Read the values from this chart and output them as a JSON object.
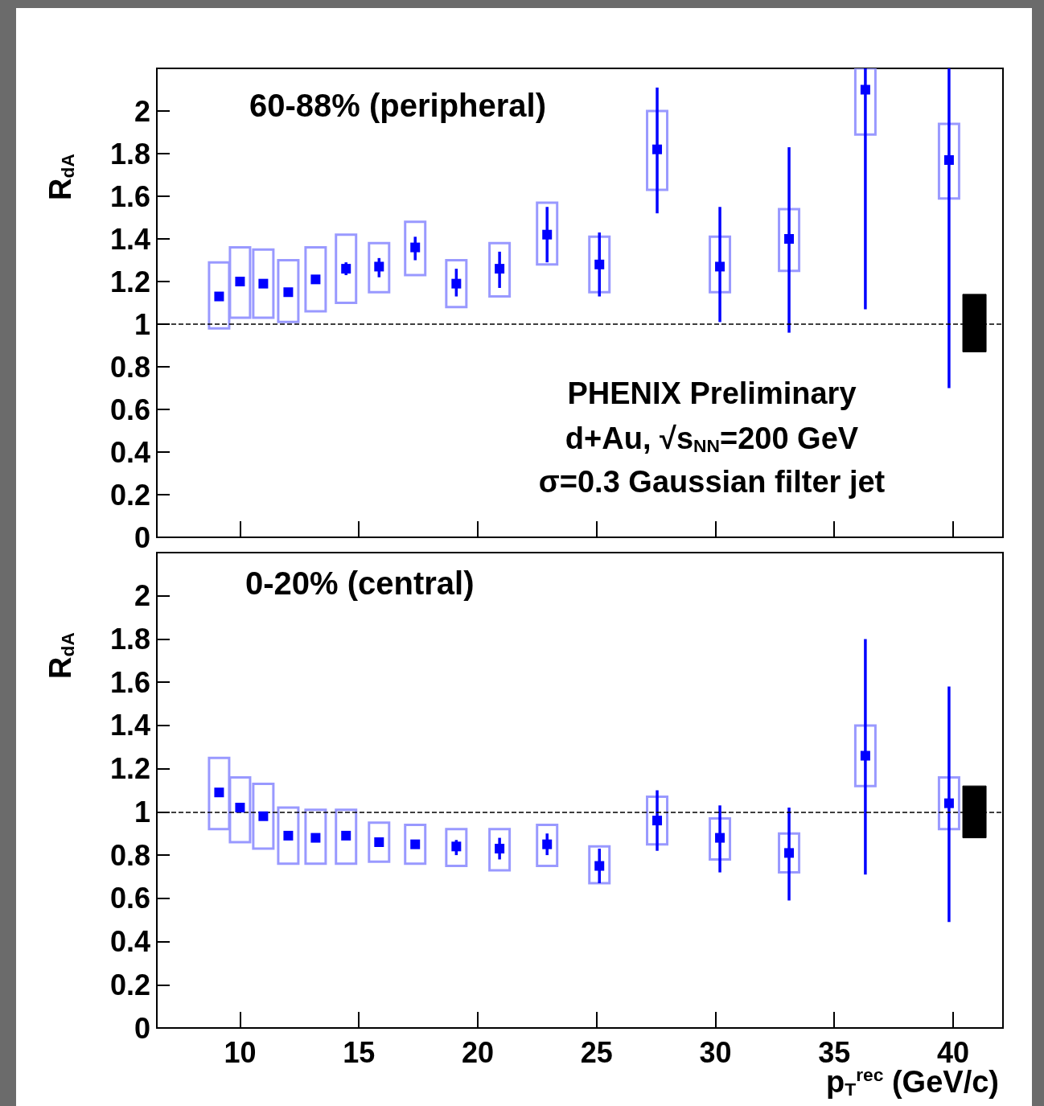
{
  "chart_data": [
    {
      "type": "scatter",
      "title": "60-88% (peripheral)",
      "ylabel": "R$_{dA}$",
      "annotations": [
        "PHENIX Preliminary",
        "d+Au, √s$_{NN}$=200 GeV",
        "σ=0.3 Gaussian filter jet"
      ],
      "x": [
        9.12,
        10.0,
        10.98,
        12.03,
        13.18,
        14.46,
        15.85,
        17.37,
        19.1,
        20.92,
        22.92,
        25.12,
        27.55,
        30.19,
        33.1,
        36.31,
        39.83
      ],
      "xlim": [
        6.5,
        42.1
      ],
      "xticks": [
        10,
        15,
        20,
        25,
        30,
        35,
        40
      ],
      "ylim": [
        0,
        2.2
      ],
      "yticks": [
        0,
        0.2,
        0.4,
        0.6,
        0.8,
        1,
        1.2,
        1.4,
        1.6,
        1.8,
        2
      ],
      "tick_labels": "y",
      "marker": "square",
      "ref_lines": [
        {
          "axis": "y",
          "value": 1,
          "line_style": "dashed",
          "color": "#000000"
        }
      ],
      "series": [
        {
          "type": "bar",
          "color": "#9999ff",
          "base": [
            0.98,
            1.03,
            1.03,
            1.01,
            1.06,
            1.1,
            1.15,
            1.23,
            1.08,
            1.13,
            1.28,
            1.15,
            1.63,
            1.15,
            1.25,
            1.89,
            1.59
          ],
          "values": [
            0.31,
            0.33,
            0.32,
            0.29,
            0.3,
            0.32,
            0.23,
            0.25,
            0.22,
            0.25,
            0.29,
            0.26,
            0.37,
            0.26,
            0.29,
            0.31,
            0.35
          ]
        },
        {
          "type": "bar",
          "color": "#000000",
          "x": [
            40.9
          ],
          "base": [
            0.87
          ],
          "values": [
            0.27
          ]
        },
        {
          "color": "#0000ff",
          "values": [
            1.13,
            1.2,
            1.19,
            1.15,
            1.21,
            1.26,
            1.27,
            1.36,
            1.19,
            1.26,
            1.42,
            1.28,
            1.82,
            1.27,
            1.4,
            2.1,
            1.77
          ],
          "errors": [
            null,
            null,
            null,
            null,
            [
              1.19,
              1.23
            ],
            [
              1.23,
              1.29
            ],
            [
              1.22,
              1.31
            ],
            [
              1.3,
              1.41
            ],
            [
              1.13,
              1.26
            ],
            [
              1.17,
              1.34
            ],
            [
              1.29,
              1.55
            ],
            [
              1.13,
              1.43
            ],
            [
              1.52,
              2.11
            ],
            [
              1.01,
              1.55
            ],
            [
              0.96,
              1.83
            ],
            [
              1.07,
              2.2
            ],
            [
              0.7,
              2.2
            ]
          ]
        }
      ]
    },
    {
      "type": "scatter",
      "title": "0-20% (central)",
      "ylabel": "R$_{dA}$",
      "xlabel": "p$_{T}$$^{rec}$ (GeV/c)",
      "x": [
        9.12,
        10.0,
        10.98,
        12.03,
        13.18,
        14.46,
        15.85,
        17.37,
        19.1,
        20.92,
        22.92,
        25.12,
        27.55,
        30.19,
        33.1,
        36.31,
        39.83
      ],
      "xlim": [
        6.5,
        42.1
      ],
      "xticks": [
        10,
        15,
        20,
        25,
        30,
        35,
        40
      ],
      "ylim": [
        0,
        2.2
      ],
      "yticks": [
        0,
        0.2,
        0.4,
        0.6,
        0.8,
        1,
        1.2,
        1.4,
        1.6,
        1.8,
        2
      ],
      "marker": "square",
      "ref_lines": [
        {
          "axis": "y",
          "value": 1,
          "line_style": "dashed",
          "color": "#000000"
        }
      ],
      "series": [
        {
          "type": "bar",
          "color": "#9999ff",
          "base": [
            0.92,
            0.86,
            0.83,
            0.76,
            0.76,
            0.76,
            0.77,
            0.76,
            0.75,
            0.73,
            0.75,
            0.67,
            0.85,
            0.78,
            0.72,
            1.12,
            0.92
          ],
          "values": [
            0.33,
            0.3,
            0.3,
            0.26,
            0.25,
            0.25,
            0.18,
            0.18,
            0.17,
            0.19,
            0.19,
            0.17,
            0.22,
            0.19,
            0.18,
            0.28,
            0.24
          ]
        },
        {
          "type": "bar",
          "color": "#000000",
          "x": [
            40.9
          ],
          "base": [
            0.88
          ],
          "values": [
            0.24
          ]
        },
        {
          "color": "#0000ff",
          "values": [
            1.09,
            1.02,
            0.98,
            0.89,
            0.88,
            0.89,
            0.86,
            0.85,
            0.84,
            0.83,
            0.85,
            0.75,
            0.96,
            0.88,
            0.81,
            1.26,
            1.04
          ],
          "errors": [
            null,
            null,
            null,
            null,
            null,
            null,
            null,
            [
              0.83,
              0.87
            ],
            [
              0.8,
              0.87
            ],
            [
              0.78,
              0.88
            ],
            [
              0.8,
              0.9
            ],
            [
              0.67,
              0.83
            ],
            [
              0.82,
              1.1
            ],
            [
              0.72,
              1.03
            ],
            [
              0.59,
              1.02
            ],
            [
              0.71,
              1.8
            ],
            [
              0.49,
              1.58
            ]
          ]
        }
      ]
    }
  ]
}
